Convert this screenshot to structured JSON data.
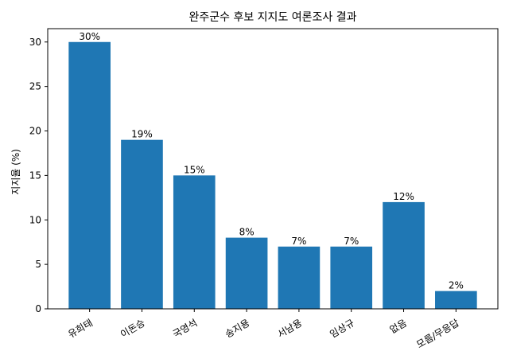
{
  "chart_data": {
    "type": "bar",
    "title": "완주군수 후보 지지도 여론조사 결과",
    "xlabel": "",
    "ylabel": "지지율 (%)",
    "categories": [
      "유희태",
      "이돈승",
      "국영석",
      "송지용",
      "서남용",
      "임상규",
      "없음",
      "모름/무응답"
    ],
    "values": [
      30,
      19,
      15,
      8,
      7,
      7,
      12,
      2
    ],
    "data_labels": [
      "30%",
      "19%",
      "15%",
      "8%",
      "7%",
      "7%",
      "12%",
      "2%"
    ],
    "ylim": [
      0,
      31.5
    ],
    "yticks": [
      0,
      5,
      10,
      15,
      20,
      25,
      30
    ],
    "ytick_labels": [
      "0",
      "5",
      "10",
      "15",
      "20",
      "25",
      "30"
    ],
    "x_tick_rotation_deg": 30,
    "grid": false,
    "bar_color": "#1f77b4"
  }
}
